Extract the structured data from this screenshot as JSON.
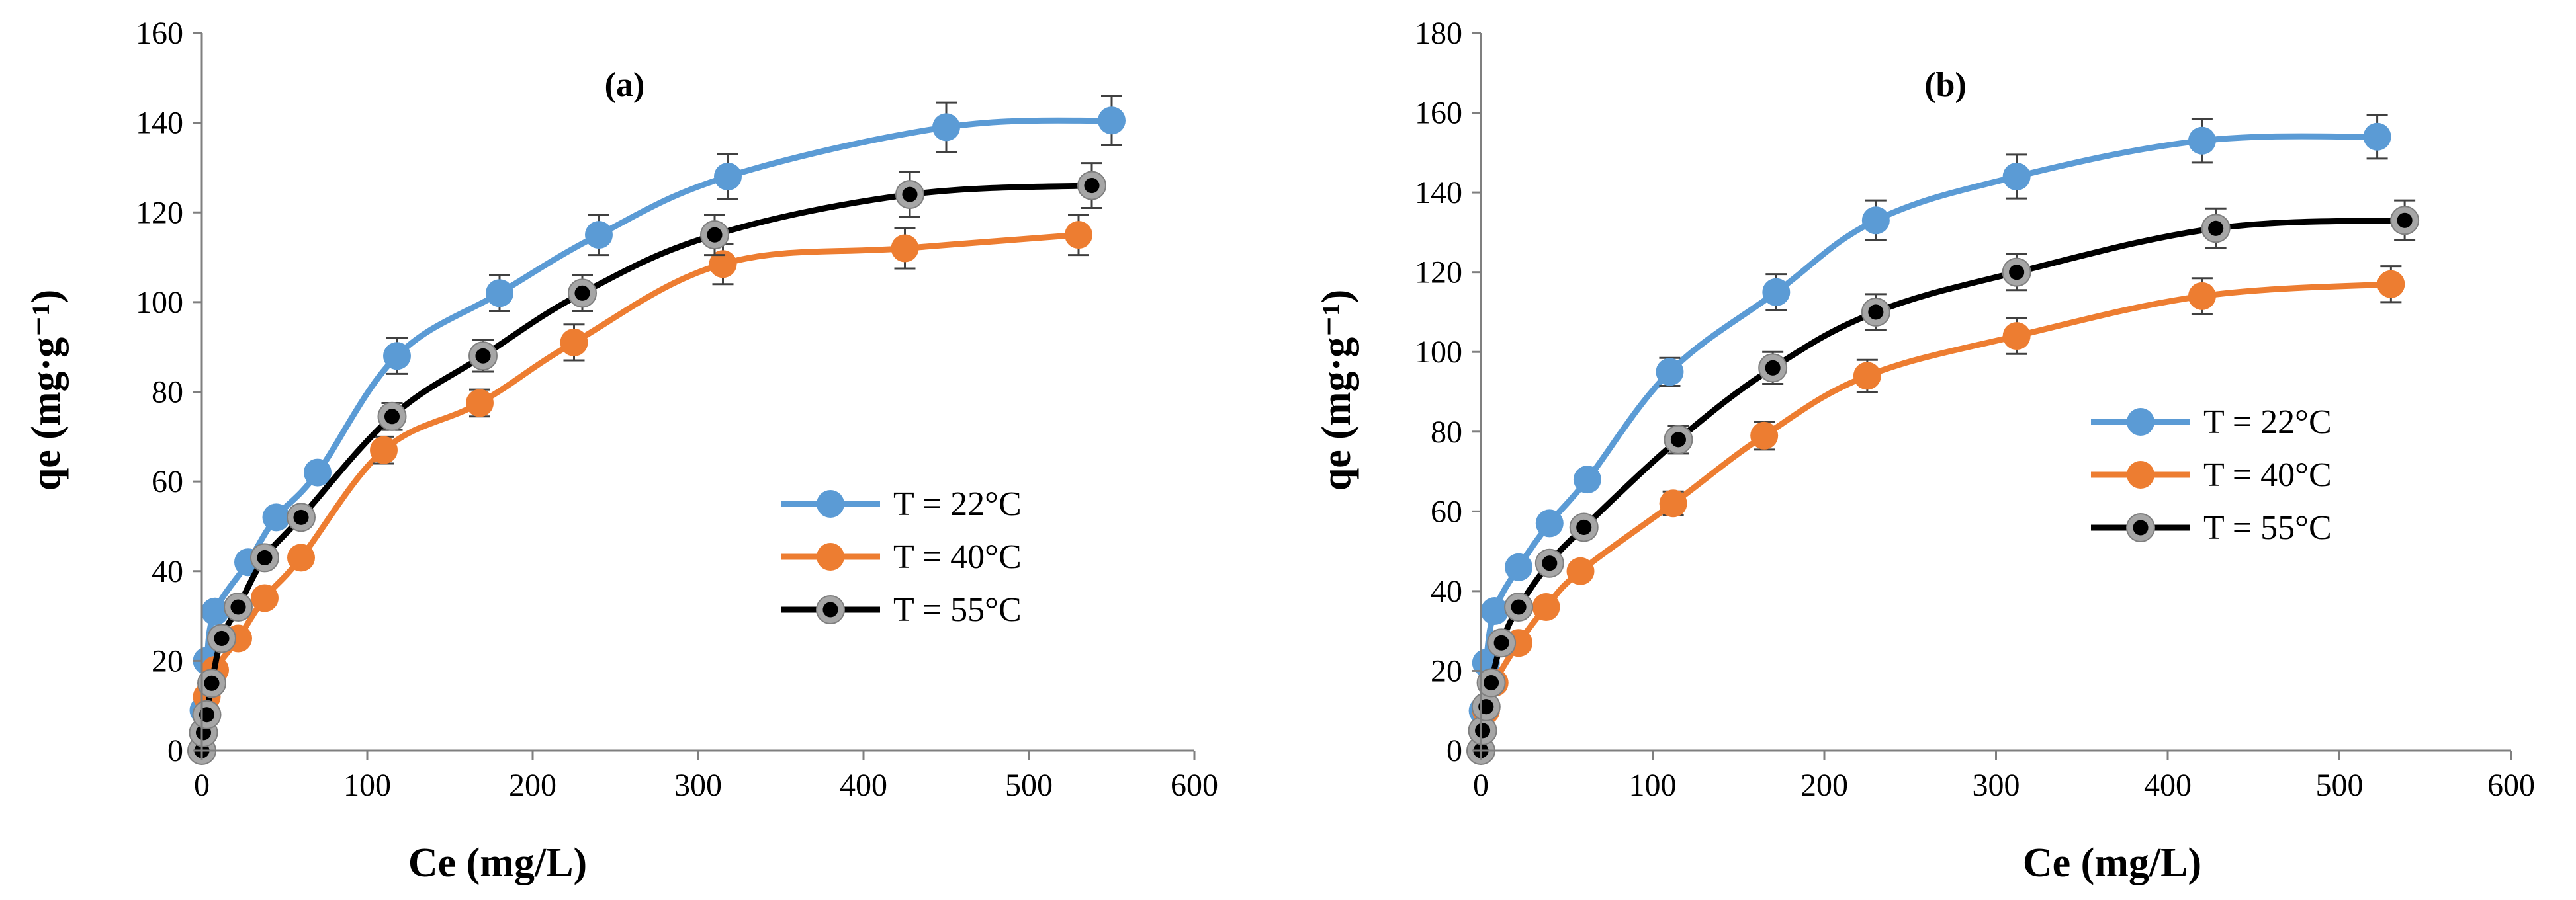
{
  "chart_data": [
    {
      "type": "line",
      "title": "(a)",
      "xlabel": "Ce (mg/L)",
      "ylabel": "qe (mg·g⁻¹)",
      "xlim": [
        0,
        600
      ],
      "ylim": [
        0,
        160
      ],
      "xticks": [
        0,
        100,
        200,
        300,
        400,
        500,
        600
      ],
      "yticks": [
        0,
        20,
        40,
        60,
        80,
        100,
        120,
        140,
        160
      ],
      "legend_position": "right-center",
      "series": [
        {
          "name": "T = 22°C",
          "color": "#5B9BD5",
          "marker_style": "solid",
          "x": [
            0,
            1,
            3,
            8,
            28,
            45,
            70,
            118,
            180,
            240,
            318,
            450,
            550
          ],
          "y": [
            0,
            9,
            20,
            31,
            42,
            52,
            62,
            88,
            102,
            115,
            128,
            139,
            140.5
          ],
          "error": [
            0,
            0,
            0,
            0,
            0,
            0,
            0,
            4,
            4,
            4.5,
            5,
            5.5,
            5.5
          ]
        },
        {
          "name": "T = 40°C",
          "color": "#ED7D31",
          "marker_style": "solid",
          "x": [
            0,
            1,
            3,
            8,
            22,
            38,
            60,
            110,
            168,
            225,
            315,
            425,
            530
          ],
          "y": [
            0,
            4,
            12,
            18,
            25,
            34,
            43,
            67,
            77.5,
            91,
            108.5,
            112,
            115
          ],
          "error": [
            0,
            0,
            0,
            0,
            0,
            0,
            0,
            3,
            3,
            4,
            4.5,
            4.5,
            4.5
          ]
        },
        {
          "name": "T = 55°C",
          "color": "#000000",
          "marker_style": "grey-ring",
          "x": [
            0,
            1,
            3,
            6,
            12,
            22,
            38,
            60,
            115,
            170,
            230,
            310,
            428,
            538
          ],
          "y": [
            0,
            4,
            8,
            15,
            25,
            32,
            43,
            52,
            74.5,
            88,
            102,
            115,
            124,
            126
          ],
          "error": [
            0,
            0,
            0,
            0,
            0,
            0,
            0,
            0,
            3,
            3.5,
            4,
            4.5,
            5,
            5
          ]
        }
      ]
    },
    {
      "type": "line",
      "title": "(b)",
      "xlabel": "Ce (mg/L)",
      "ylabel": "qe (mg·g⁻¹)",
      "xlim": [
        0,
        600
      ],
      "ylim": [
        0,
        180
      ],
      "xticks": [
        0,
        100,
        200,
        300,
        400,
        500,
        600
      ],
      "yticks": [
        0,
        20,
        40,
        60,
        80,
        100,
        120,
        140,
        160,
        180
      ],
      "legend_position": "right-center",
      "series": [
        {
          "name": "T = 22°C",
          "color": "#5B9BD5",
          "marker_style": "solid",
          "x": [
            0,
            1,
            3,
            8,
            22,
            40,
            62,
            110,
            172,
            230,
            312,
            420,
            522
          ],
          "y": [
            0,
            10,
            22,
            35,
            46,
            57,
            68,
            95,
            115,
            133,
            144,
            153,
            154
          ],
          "error": [
            0,
            0,
            0,
            0,
            0,
            0,
            0,
            3.5,
            4.5,
            5,
            5.5,
            5.5,
            5.5
          ]
        },
        {
          "name": "T = 40°C",
          "color": "#ED7D31",
          "marker_style": "solid",
          "x": [
            0,
            1,
            3,
            8,
            22,
            38,
            58,
            112,
            165,
            225,
            312,
            420,
            530
          ],
          "y": [
            0,
            5,
            10,
            17,
            27,
            36,
            45,
            62,
            79,
            94,
            104,
            114,
            117
          ],
          "error": [
            0,
            0,
            0,
            0,
            0,
            0,
            0,
            3,
            3.5,
            4,
            4.5,
            4.5,
            4.5
          ]
        },
        {
          "name": "T = 55°C",
          "color": "#000000",
          "marker_style": "grey-ring",
          "x": [
            0,
            1,
            3,
            6,
            12,
            22,
            40,
            60,
            115,
            170,
            230,
            312,
            428,
            538
          ],
          "y": [
            0,
            5,
            11,
            17,
            27,
            36,
            47,
            56,
            78,
            96,
            110,
            120,
            131,
            133
          ],
          "error": [
            0,
            0,
            0,
            0,
            0,
            0,
            0,
            0,
            3.5,
            4,
            4.5,
            4.5,
            5,
            5
          ]
        }
      ]
    }
  ]
}
